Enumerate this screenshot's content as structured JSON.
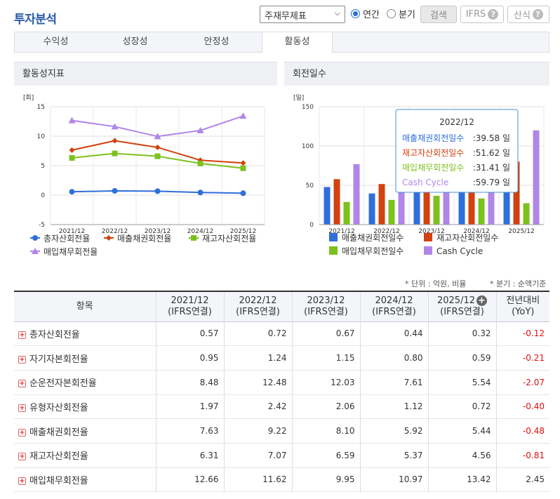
{
  "header": {
    "title": "투자분석",
    "select_value": "주재무제표",
    "radio_annual": "연간",
    "radio_quarter": "분기",
    "search_btn": "검색",
    "ifrs_btn": "IFRS",
    "formula_btn": "산식"
  },
  "tabs": [
    "수익성",
    "성장성",
    "안정성",
    "활동성"
  ],
  "left_panel": {
    "title": "활동성지표",
    "unit": "[회]"
  },
  "right_panel": {
    "title": "회전일수",
    "unit": "[일]"
  },
  "colors": {
    "blue": "#2f6fdc",
    "red": "#d2410f",
    "green": "#7dc11f",
    "purple": "#b086e8"
  },
  "chart_data": [
    {
      "type": "line",
      "categories": [
        "2021/12",
        "2022/12",
        "2023/12",
        "2024/12",
        "2025/12"
      ],
      "ylim": [
        -5,
        15
      ],
      "yticks": [
        -5,
        0,
        5,
        10,
        15
      ],
      "series": [
        {
          "name": "총자산회전율",
          "values": [
            0.57,
            0.72,
            0.67,
            0.44,
            0.32
          ],
          "color": "#2f6fdc",
          "marker": "circle"
        },
        {
          "name": "매출채권회전율",
          "values": [
            7.63,
            9.22,
            8.1,
            5.92,
            5.44
          ],
          "color": "#d2410f",
          "marker": "diamond"
        },
        {
          "name": "재고자산회전율",
          "values": [
            6.31,
            7.07,
            6.59,
            5.37,
            4.56
          ],
          "color": "#7dc11f",
          "marker": "square"
        },
        {
          "name": "매입채무회전율",
          "values": [
            12.66,
            11.62,
            9.95,
            10.97,
            13.42
          ],
          "color": "#b086e8",
          "marker": "triangle"
        }
      ],
      "grid": true,
      "legend": "bottom"
    },
    {
      "type": "bar",
      "categories": [
        "2021/12",
        "2022/12",
        "2023/12",
        "2024/12",
        "2025/12"
      ],
      "ylim": [
        0,
        150
      ],
      "yticks": [
        0,
        50,
        100,
        150
      ],
      "series": [
        {
          "name": "매출채권회전일수",
          "values": [
            47.8,
            39.58,
            45.1,
            61.7,
            67.1
          ],
          "color": "#2f6fdc"
        },
        {
          "name": "재고자산회전일수",
          "values": [
            57.8,
            51.62,
            55.4,
            68.0,
            80.0
          ],
          "color": "#d2410f"
        },
        {
          "name": "매입채무회전일수",
          "values": [
            28.8,
            31.41,
            36.7,
            33.3,
            27.2
          ],
          "color": "#7dc11f"
        },
        {
          "name": "Cash Cycle",
          "values": [
            76.8,
            59.79,
            63.8,
            96.4,
            119.9
          ],
          "color": "#b086e8"
        }
      ],
      "grid": true,
      "legend": "bottom",
      "tooltip": {
        "title": "2022/12",
        "rows": [
          {
            "label": "매출채권회전일수",
            "value": ":39.58 일",
            "color": "#2f6fdc"
          },
          {
            "label": "재고자산회전일수",
            "value": ":51.62 일",
            "color": "#d2410f"
          },
          {
            "label": "매입채무회전일수",
            "value": ":31.41 일",
            "color": "#7dc11f"
          },
          {
            "label": "Cash Cycle",
            "value": ":59.79 일",
            "color": "#b086e8"
          }
        ]
      }
    }
  ],
  "notes": {
    "unit": "* 단위 : 억원, 비율",
    "quarter": "* 분기 : 순액기준"
  },
  "table": {
    "head": [
      "항목",
      "2021/12",
      "2022/12",
      "2023/12",
      "2024/12",
      "2025/12",
      "전년대비"
    ],
    "head_sub": [
      "",
      "(IFRS연결)",
      "(IFRS연결)",
      "(IFRS연결)",
      "(IFRS연결)",
      "(IFRS연결)",
      "(YoY)"
    ],
    "rows": [
      {
        "label": "총자산회전율",
        "values": [
          "0.57",
          "0.72",
          "0.67",
          "0.44",
          "0.32"
        ],
        "yoy": "-0.12"
      },
      {
        "label": "자기자본회전율",
        "values": [
          "0.95",
          "1.24",
          "1.15",
          "0.80",
          "0.59"
        ],
        "yoy": "-0.21"
      },
      {
        "label": "순운전자본회전율",
        "values": [
          "8.48",
          "12.48",
          "12.03",
          "7.61",
          "5.54"
        ],
        "yoy": "-2.07"
      },
      {
        "label": "유형자산회전율",
        "values": [
          "1.97",
          "2.42",
          "2.06",
          "1.12",
          "0.72"
        ],
        "yoy": "-0.40"
      },
      {
        "label": "매출채권회전율",
        "values": [
          "7.63",
          "9.22",
          "8.10",
          "5.92",
          "5.44"
        ],
        "yoy": "-0.48"
      },
      {
        "label": "재고자산회전율",
        "values": [
          "6.31",
          "7.07",
          "6.59",
          "5.37",
          "4.56"
        ],
        "yoy": "-0.81"
      },
      {
        "label": "매입채무회전율",
        "values": [
          "12.66",
          "11.62",
          "9.95",
          "10.97",
          "13.42"
        ],
        "yoy": "2.45"
      }
    ]
  }
}
